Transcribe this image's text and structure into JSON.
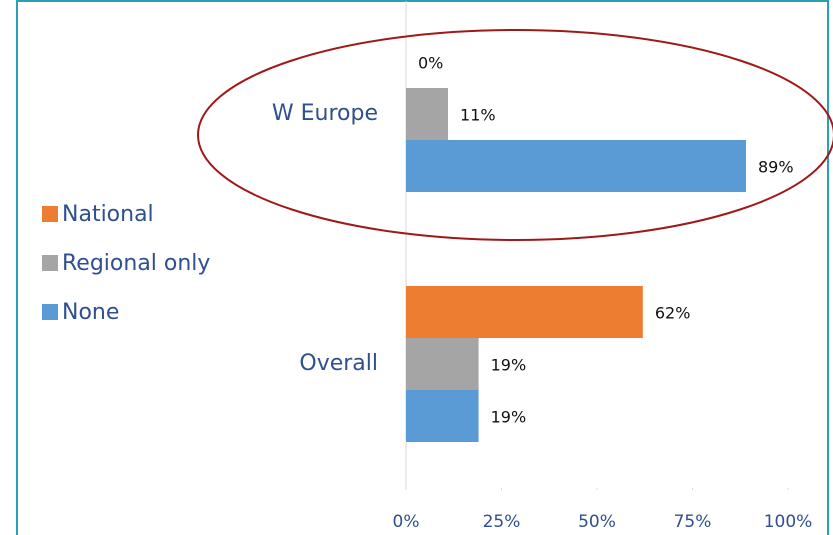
{
  "chart_data": {
    "type": "bar",
    "orientation": "horizontal",
    "categories": [
      "W Europe",
      "Overall"
    ],
    "series": [
      {
        "name": "National",
        "color": "#ed7d31",
        "values": [
          0,
          62
        ],
        "value_labels": [
          "0%",
          "62%"
        ]
      },
      {
        "name": "Regional only",
        "color": "#a5a5a5",
        "values": [
          11,
          19
        ],
        "value_labels": [
          "11%",
          "19%"
        ]
      },
      {
        "name": "None",
        "color": "#5b9bd5",
        "values": [
          89,
          19
        ],
        "value_labels": [
          "89%",
          "19%"
        ]
      }
    ],
    "xlim": [
      0,
      100
    ],
    "xticks": [
      {
        "value": 0,
        "label": "0%"
      },
      {
        "value": 25,
        "label": "25%"
      },
      {
        "value": 50,
        "label": "50%"
      },
      {
        "value": 75,
        "label": "75%"
      },
      {
        "value": 100,
        "label": "100%"
      }
    ],
    "grid": false,
    "legend": "left"
  }
}
